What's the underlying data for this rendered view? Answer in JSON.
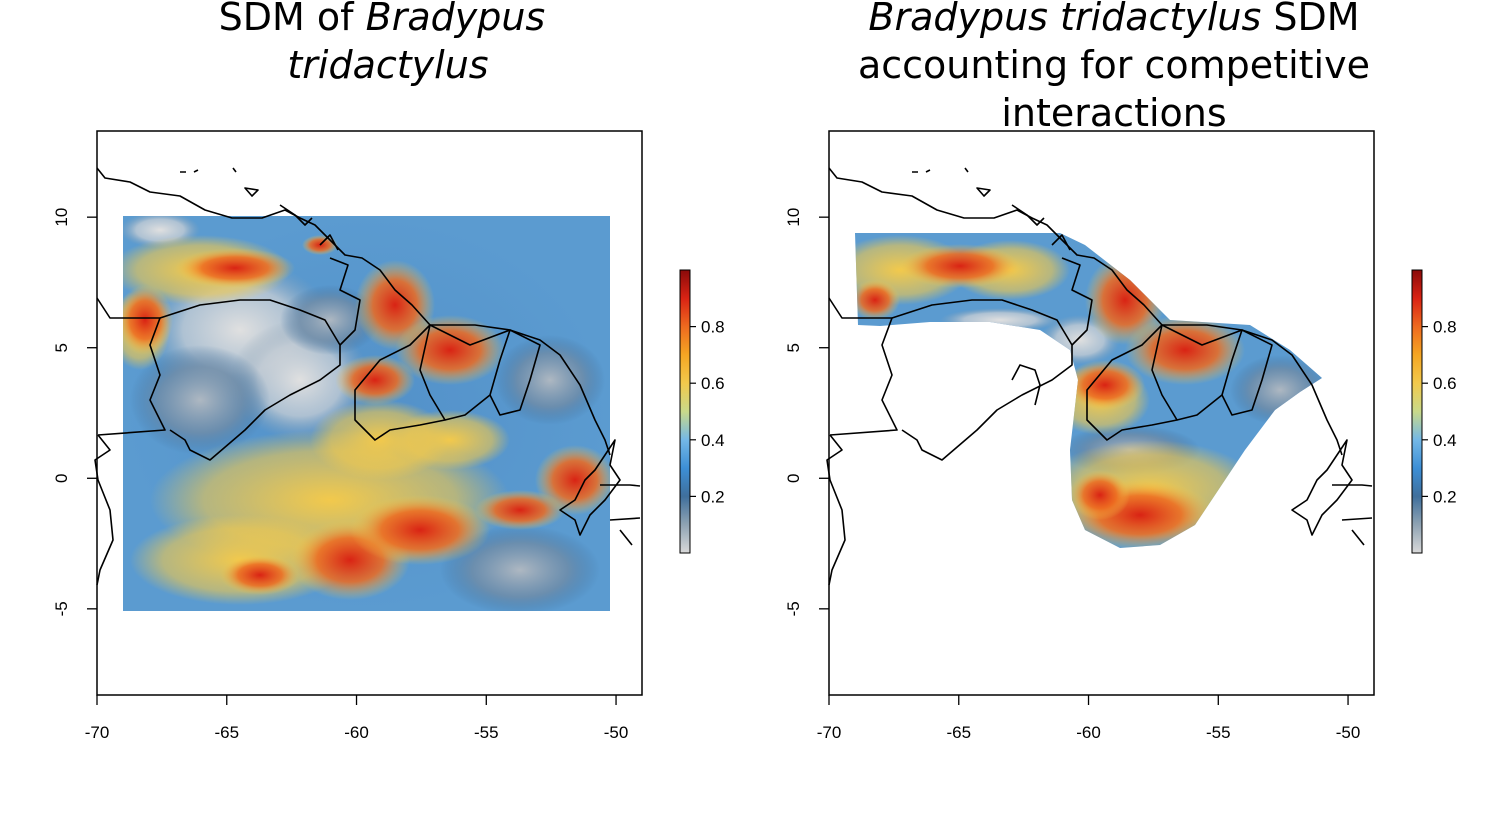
{
  "panels": [
    {
      "title_lines": [
        [
          {
            "text": "SDM of ",
            "italic": false
          },
          {
            "text": "Bradypus",
            "italic": true
          }
        ],
        [
          {
            "text": "tridactylus",
            "italic": true
          }
        ]
      ],
      "x_ticks": [
        "-70",
        "-65",
        "-60",
        "-55",
        "-50"
      ],
      "y_ticks": [
        "10",
        "5",
        "0",
        "-5"
      ],
      "colorbar_ticks": [
        "0.8",
        "0.6",
        "0.4",
        "0.2"
      ],
      "raster": "full extent"
    },
    {
      "title_lines": [
        [
          {
            "text": "Bradypus tridactylus",
            "italic": true
          },
          {
            "text": " SDM",
            "italic": false
          }
        ],
        [
          {
            "text": "accounting for competitive",
            "italic": false
          }
        ],
        [
          {
            "text": "interactions",
            "italic": false
          }
        ]
      ],
      "x_ticks": [
        "-70",
        "-65",
        "-60",
        "-55",
        "-50"
      ],
      "y_ticks": [
        "10",
        "5",
        "0",
        "-5"
      ],
      "colorbar_ticks": [
        "0.8",
        "0.6",
        "0.4",
        "0.2"
      ],
      "raster": "clipped to competition zone"
    }
  ],
  "colorbar": {
    "colors": [
      "#d9d9d9",
      "#8fa3b3",
      "#3f6f9c",
      "#3d8fd6",
      "#74b8e6",
      "#c9d98a",
      "#f2c94c",
      "#f5a623",
      "#ee6a1f",
      "#d92314",
      "#8a0a0a"
    ],
    "range": [
      0,
      1
    ]
  },
  "axes": {
    "xlim": [
      -70,
      -49
    ],
    "ylim": [
      -8.3,
      13.3
    ]
  }
}
